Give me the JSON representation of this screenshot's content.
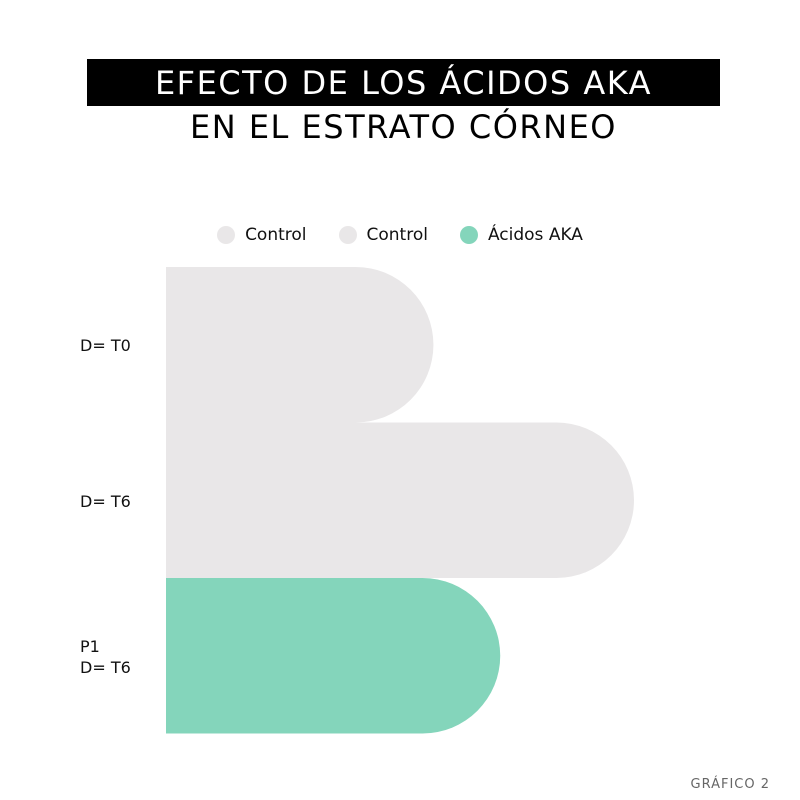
{
  "title": {
    "line1": "EFECTO DE LOS ÁCIDOS AKA",
    "line2": "EN EL ESTRATO CÓRNEO"
  },
  "legend": [
    {
      "label": "Control",
      "color": "#e9e7e8"
    },
    {
      "label": "Control",
      "color": "#e9e7e8"
    },
    {
      "label": "Ácidos AKA",
      "color": "#84d5bb"
    }
  ],
  "footer": "GRÁFICO 2",
  "chart_data": {
    "type": "bar",
    "orientation": "horizontal",
    "categories": [
      "D= T0",
      "D= T6",
      "P1\nD= T6"
    ],
    "values": [
      4.0,
      7.0,
      5.0
    ],
    "colors": [
      "#e9e7e8",
      "#e9e7e8",
      "#84d5bb"
    ],
    "xlim": [
      0,
      7.0
    ],
    "grid": false,
    "legend_position": "top",
    "title": "EFECTO DE LOS ÁCIDOS AKA EN EL ESTRATO CÓRNEO"
  }
}
